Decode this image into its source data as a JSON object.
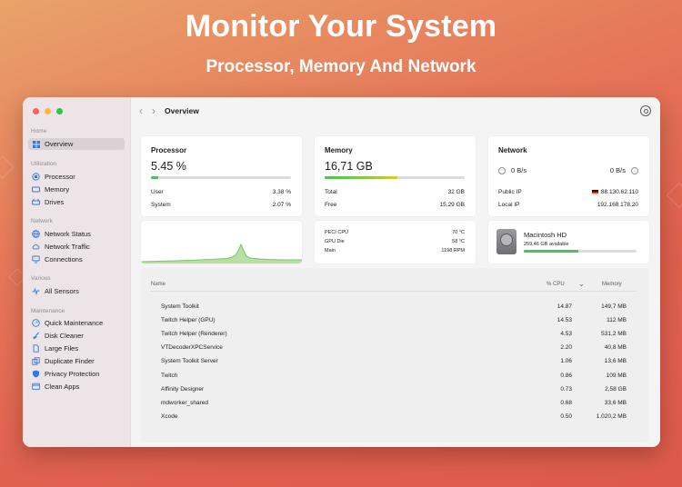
{
  "hero": {
    "title": "Monitor Your System",
    "subtitle": "Processor, Memory And Network"
  },
  "colors": {
    "accent": "#2f7ae5",
    "green": "#4cc25a",
    "yellow": "#e2c531",
    "close": "#fe5f57",
    "minimize": "#febb2e",
    "zoom": "#28c840"
  },
  "sidebar": {
    "home_label": "Home",
    "overview": "Overview",
    "utilization_label": "Utilization",
    "utilization": [
      "Processor",
      "Memory",
      "Drives"
    ],
    "network_label": "Network",
    "network": [
      "Network Status",
      "Network Traffic",
      "Connections"
    ],
    "various_label": "Various",
    "various": [
      "All Sensors"
    ],
    "maintenance_label": "Maintenance",
    "maintenance": [
      "Quick Maintenance",
      "Disk Cleaner",
      "Large Files",
      "Duplicate Finder",
      "Privacy Protection",
      "Clean Apps"
    ]
  },
  "toolbar": {
    "title": "Overview",
    "back_icon": "chevron-left-icon",
    "forward_icon": "chevron-right-icon",
    "settings_icon": "gear-icon"
  },
  "processor": {
    "title": "Processor",
    "value": "5.45 %",
    "usage_fraction": 0.0545,
    "user_label": "User",
    "user_value": "3.38 %",
    "system_label": "System",
    "system_value": "2.07 %"
  },
  "memory": {
    "title": "Memory",
    "value": "16,71 GB",
    "usage_fraction": 0.52,
    "total_label": "Total",
    "total_value": "32 GB",
    "free_label": "Free",
    "free_value": "15,29 GB"
  },
  "network": {
    "title": "Network",
    "down": "0 B/s",
    "up": "0 B/s",
    "public_ip_label": "Public IP",
    "public_ip": "88.130.62.110",
    "local_ip_label": "Local IP",
    "local_ip": "192.168.178.20"
  },
  "sensors": [
    {
      "label": "PECI CPU",
      "value": "70 °C"
    },
    {
      "label": "GPU Die",
      "value": "58 °C"
    },
    {
      "label": "Main",
      "value": "1198 RPM"
    }
  ],
  "disk": {
    "name": "Macintosh HD",
    "available": "259,46 GB available",
    "usage_fraction": 0.48
  },
  "table": {
    "headers": {
      "name": "Name",
      "cpu": "% CPU",
      "memory": "Memory"
    },
    "rows": [
      {
        "name": "System Toolkit",
        "cpu": "14.87",
        "memory": "149,7 MB"
      },
      {
        "name": "Twitch Helper (GPU)",
        "cpu": "14.53",
        "memory": "112 MB"
      },
      {
        "name": "Twitch Helper (Renderer)",
        "cpu": "4.53",
        "memory": "531,2 MB"
      },
      {
        "name": "VTDecoderXPCService",
        "cpu": "2.20",
        "memory": "40,8 MB"
      },
      {
        "name": "System Toolkit Server",
        "cpu": "1.06",
        "memory": "13,6 MB"
      },
      {
        "name": "Twitch",
        "cpu": "0.86",
        "memory": "109 MB"
      },
      {
        "name": "Affinity Designer",
        "cpu": "0.73",
        "memory": "2,58 GB"
      },
      {
        "name": "mdworker_shared",
        "cpu": "0.68",
        "memory": "33,6 MB"
      },
      {
        "name": "Xcode",
        "cpu": "0.50",
        "memory": "1.020,2 MB"
      }
    ]
  }
}
